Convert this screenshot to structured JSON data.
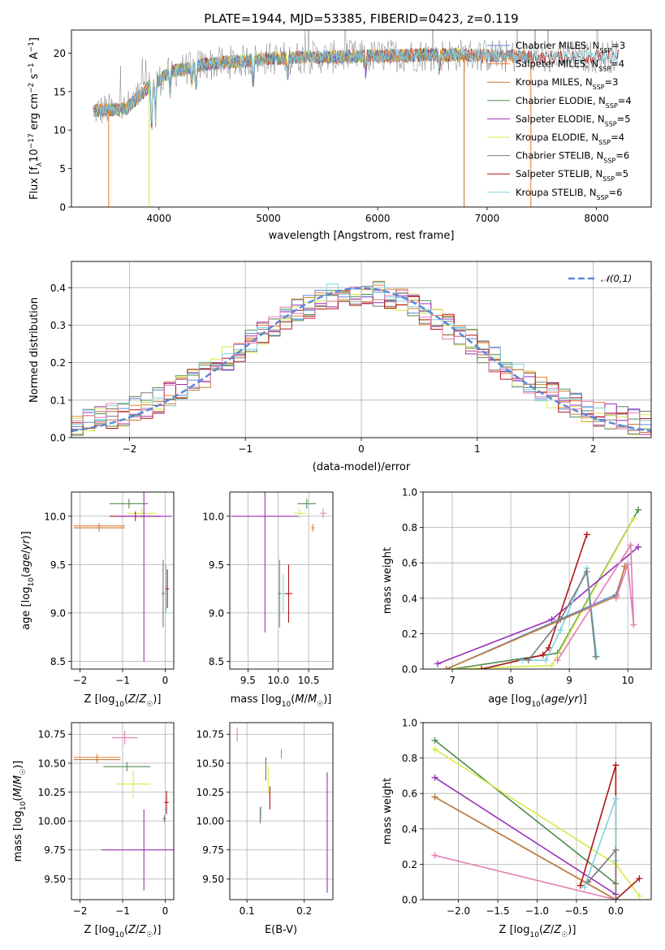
{
  "colors": {
    "chabrier_miles": "#5b87d6",
    "salpeter_miles": "#ee7f34",
    "kroupa_miles": "#c77c36",
    "chabrier_elodie": "#4f8c4f",
    "salpeter_elodie": "#9b30b8",
    "kroupa_elodie": "#d7ea4a",
    "chabrier_stelib": "#7a7a7a",
    "salpeter_stelib": "#b01414",
    "kroupa_stelib": "#7fd4dd",
    "normal": "#5b87d6",
    "pink": "#e27cb4"
  },
  "chart_data": [
    {
      "type": "line",
      "title": "PLATE=1944, MJD=53385, FIBERID=0423, z=0.119",
      "xlabel": "wavelength [Angstrom, rest frame]",
      "ylabel": "Flux [f_λ10^-17 erg cm^-2 s^-1 A^-1]",
      "xlim": [
        3200,
        8500
      ],
      "ylim": [
        0,
        23
      ],
      "xticks": [
        "4000",
        "5000",
        "6000",
        "7000",
        "8000"
      ],
      "yticks": [
        "0",
        "5",
        "10",
        "15",
        "20"
      ],
      "legend_position": "top-right",
      "series": [
        {
          "name": "Chabrier MILES, N_SSP=3",
          "key": "chabrier_miles"
        },
        {
          "name": "Salpeter MILES, N_SSP=4",
          "key": "salpeter_miles"
        },
        {
          "name": "Kroupa MILES, N_SSP=3",
          "key": "kroupa_miles"
        },
        {
          "name": "Chabrier ELODIE, N_SSP=4",
          "key": "chabrier_elodie"
        },
        {
          "name": "Salpeter ELODIE, N_SSP=5",
          "key": "salpeter_elodie"
        },
        {
          "name": "Kroupa ELODIE, N_SSP=4",
          "key": "kroupa_elodie"
        },
        {
          "name": "Chabrier STELIB, N_SSP=6",
          "key": "chabrier_stelib"
        },
        {
          "name": "Salpeter STELIB, N_SSP=5",
          "key": "salpeter_stelib"
        },
        {
          "name": "Kroupa STELIB, N_SSP=6",
          "key": "kroupa_stelib"
        }
      ],
      "continuum": {
        "x": [
          3400,
          3700,
          3900,
          4100,
          4400,
          5000,
          5500,
          6000,
          6500,
          7000,
          7500,
          8200
        ],
        "y": [
          12.5,
          12.8,
          15.5,
          17.5,
          18.5,
          19.3,
          19.5,
          19.6,
          19.8,
          19.7,
          19.4,
          19.6
        ]
      },
      "cutoffs": [
        {
          "x": 3540,
          "key": "salpeter_miles"
        },
        {
          "x": 3910,
          "key": "kroupa_elodie"
        },
        {
          "x": 6790,
          "key": "kroupa_miles"
        },
        {
          "x": 7400,
          "key": "salpeter_miles"
        }
      ]
    },
    {
      "type": "histogram",
      "xlabel": "(data-model)/error",
      "ylabel": "Normed distribution",
      "xlim": [
        -2.5,
        2.5
      ],
      "ylim": [
        0,
        0.47
      ],
      "xticks": [
        "-2",
        "-1",
        "0",
        "1",
        "2"
      ],
      "yticks": [
        "0.0",
        "0.1",
        "0.2",
        "0.3",
        "0.4"
      ],
      "legend": "𝒩(0,1)",
      "legend_position": "top-right"
    },
    {
      "type": "scatter",
      "xlabel": "Z [log10(Z/Z☉)]",
      "ylabel": "age  [log10(age/yr)]",
      "xlim": [
        -2.2,
        0.2
      ],
      "ylim": [
        8.42,
        10.25
      ],
      "xticks": [
        "-2",
        "-1",
        "0"
      ],
      "yticks": [
        "8.5",
        "9.0",
        "9.5",
        "10.0"
      ],
      "points": [
        {
          "x": -1.55,
          "y": 9.88,
          "xerr": 0.6,
          "yerr": 0.04,
          "key": "kroupa_miles"
        },
        {
          "x": -1.55,
          "y": 9.9,
          "xerr": 0.6,
          "yerr": 0.03,
          "key": "salpeter_miles"
        },
        {
          "x": -0.85,
          "y": 10.13,
          "xerr": 0.45,
          "yerr": 0.05,
          "key": "chabrier_elodie"
        },
        {
          "x": -0.55,
          "y": 10.03,
          "xerr": 0.35,
          "yerr": 0.05,
          "key": "kroupa_elodie"
        },
        {
          "x": -0.7,
          "y": 10.0,
          "xerr": 0.6,
          "yerr": 0.05,
          "key": "salpeter_stelib"
        },
        {
          "x": -0.5,
          "y": 10.0,
          "xerr": 0.65,
          "yerr": 1.5,
          "key": "salpeter_elodie"
        },
        {
          "x": -0.05,
          "y": 9.2,
          "xerr": 0.04,
          "yerr": 0.35,
          "key": "chabrier_stelib"
        },
        {
          "x": 0.02,
          "y": 9.25,
          "xerr": 0.03,
          "yerr": 0.25,
          "key": "kroupa_stelib"
        },
        {
          "x": 0.05,
          "y": 9.25,
          "xerr": 0.04,
          "yerr": 0.2,
          "key": "salpeter_stelib"
        }
      ]
    },
    {
      "type": "scatter",
      "xlabel": "mass [log10(M/M☉)]",
      "ylabel": "",
      "xlim": [
        9.2,
        10.9
      ],
      "ylim": [
        8.42,
        10.25
      ],
      "xticks": [
        "9.5",
        "10.0",
        "10.5"
      ],
      "yticks": [
        "8.5",
        "9.0",
        "9.5",
        "10.0"
      ],
      "points": [
        {
          "x": 9.78,
          "y": 10.0,
          "xerr": 0.55,
          "yerr": 1.2,
          "key": "salpeter_elodie"
        },
        {
          "x": 10.47,
          "y": 10.13,
          "xerr": 0.15,
          "yerr": 0.05,
          "key": "chabrier_elodie"
        },
        {
          "x": 10.35,
          "y": 10.03,
          "xerr": 0.1,
          "yerr": 0.05,
          "key": "kroupa_elodie"
        },
        {
          "x": 10.57,
          "y": 9.88,
          "xerr": 0.03,
          "yerr": 0.04,
          "key": "salpeter_miles"
        },
        {
          "x": 10.74,
          "y": 10.03,
          "xerr": 0.05,
          "yerr": 0.05,
          "key": "pink"
        },
        {
          "x": 10.02,
          "y": 9.2,
          "xerr": 0.03,
          "yerr": 0.35,
          "key": "chabrier_stelib"
        },
        {
          "x": 10.08,
          "y": 9.2,
          "xerr": 0.04,
          "yerr": 0.2,
          "key": "kroupa_stelib"
        },
        {
          "x": 10.17,
          "y": 9.2,
          "xerr": 0.06,
          "yerr": 0.3,
          "key": "salpeter_stelib"
        }
      ]
    },
    {
      "type": "line",
      "xlabel": "age  [log10(age/yr)]",
      "ylabel": "mass weight",
      "xlim": [
        6.5,
        10.4
      ],
      "ylim": [
        0,
        1
      ],
      "xticks": [
        "7",
        "8",
        "9",
        "10"
      ],
      "yticks": [
        "0.0",
        "0.2",
        "0.4",
        "0.6",
        "0.8",
        "1.0"
      ],
      "series": [
        {
          "key": "chabrier_elodie",
          "x": [
            7.0,
            8.8,
            10.18
          ],
          "y": [
            0.0,
            0.09,
            0.9
          ]
        },
        {
          "key": "kroupa_elodie",
          "x": [
            7.0,
            8.7,
            10.1
          ],
          "y": [
            0.0,
            0.02,
            0.85
          ]
        },
        {
          "key": "salpeter_elodie",
          "x": [
            6.75,
            8.7,
            10.18
          ],
          "y": [
            0.03,
            0.28,
            0.69
          ]
        },
        {
          "key": "salpeter_stelib",
          "x": [
            7.5,
            8.55,
            8.65,
            9.3
          ],
          "y": [
            0.0,
            0.08,
            0.12,
            0.76
          ]
        },
        {
          "key": "kroupa_stelib",
          "x": [
            8.2,
            8.6,
            8.85,
            9.3,
            9.47
          ],
          "y": [
            0.05,
            0.05,
            0.22,
            0.57,
            0.07
          ]
        },
        {
          "key": "chabrier_stelib",
          "x": [
            8.3,
            8.85,
            9.3,
            9.45
          ],
          "y": [
            0.05,
            0.28,
            0.55,
            0.07
          ]
        },
        {
          "key": "chabrier_miles",
          "x": [
            6.9,
            9.8,
            9.95
          ],
          "y": [
            0.0,
            0.42,
            0.58
          ]
        },
        {
          "key": "kroupa_miles",
          "x": [
            6.9,
            9.8,
            9.95
          ],
          "y": [
            0.0,
            0.41,
            0.58
          ]
        },
        {
          "key": "pink",
          "x": [
            8.8,
            10.05,
            10.1,
            10.0,
            9.8
          ],
          "y": [
            0.05,
            0.7,
            0.25,
            0.59,
            0.4
          ]
        }
      ]
    },
    {
      "type": "scatter",
      "xlabel": "Z [log10(Z/Z☉)]",
      "ylabel": "mass [log10(M/M☉)]",
      "xlim": [
        -2.2,
        0.2
      ],
      "ylim": [
        9.32,
        10.85
      ],
      "xticks": [
        "-2",
        "-1",
        "0"
      ],
      "yticks": [
        "9.50",
        "9.75",
        "10.00",
        "10.25",
        "10.50",
        "10.75"
      ],
      "points": [
        {
          "x": -1.6,
          "y": 10.55,
          "xerr": 0.55,
          "yerr": 0.03,
          "key": "salpeter_miles"
        },
        {
          "x": -1.6,
          "y": 10.53,
          "xerr": 0.55,
          "yerr": 0.03,
          "key": "kroupa_miles"
        },
        {
          "x": -0.95,
          "y": 10.72,
          "xerr": 0.3,
          "yerr": 0.06,
          "key": "pink"
        },
        {
          "x": -0.9,
          "y": 10.47,
          "xerr": 0.55,
          "yerr": 0.04,
          "key": "chabrier_elodie"
        },
        {
          "x": -0.75,
          "y": 10.32,
          "xerr": 0.4,
          "yerr": 0.12,
          "key": "kroupa_elodie"
        },
        {
          "x": -0.5,
          "y": 9.75,
          "xerr": 1.0,
          "yerr": 0.35,
          "key": "salpeter_elodie"
        },
        {
          "x": -0.02,
          "y": 10.02,
          "xerr": 0.04,
          "yerr": 0.03,
          "key": "chabrier_stelib"
        },
        {
          "x": 0.0,
          "y": 10.1,
          "xerr": 0.03,
          "yerr": 0.05,
          "key": "kroupa_stelib"
        },
        {
          "x": 0.03,
          "y": 10.16,
          "xerr": 0.05,
          "yerr": 0.1,
          "key": "salpeter_stelib"
        }
      ]
    },
    {
      "type": "scatter",
      "xlabel": "E(B-V)",
      "ylabel": "",
      "xlim": [
        0.07,
        0.25
      ],
      "ylim": [
        9.32,
        10.85
      ],
      "xticks": [
        "0.1",
        "0.2"
      ],
      "yticks": [
        "9.50",
        "9.75",
        "10.00",
        "10.25",
        "10.50",
        "10.75"
      ],
      "points": [
        {
          "x": 0.083,
          "y": 10.75,
          "xerr": 0.0,
          "yerr": 0.06,
          "key": "pink"
        },
        {
          "x": 0.123,
          "y": 10.05,
          "xerr": 0.0,
          "yerr": 0.07,
          "key": "chabrier_stelib"
        },
        {
          "x": 0.125,
          "y": 10.07,
          "xerr": 0.0,
          "yerr": 0.06,
          "key": "kroupa_stelib"
        },
        {
          "x": 0.133,
          "y": 10.45,
          "xerr": 0.0,
          "yerr": 0.1,
          "key": "chabrier_elodie"
        },
        {
          "x": 0.137,
          "y": 10.35,
          "xerr": 0.0,
          "yerr": 0.12,
          "key": "kroupa_elodie"
        },
        {
          "x": 0.14,
          "y": 10.2,
          "xerr": 0.0,
          "yerr": 0.1,
          "key": "salpeter_stelib"
        },
        {
          "x": 0.16,
          "y": 10.58,
          "xerr": 0.0,
          "yerr": 0.04,
          "key": "salpeter_miles"
        },
        {
          "x": 0.24,
          "y": 9.9,
          "xerr": 0.0,
          "yerr": 0.52,
          "key": "salpeter_elodie"
        }
      ]
    },
    {
      "type": "line",
      "xlabel": "Z [log10(Z/Z☉)]",
      "ylabel": "mass weight",
      "xlim": [
        -2.45,
        0.45
      ],
      "ylim": [
        0,
        1
      ],
      "xticks": [
        "-2.0",
        "-1.5",
        "-1.0",
        "-0.5",
        "0.0"
      ],
      "yticks": [
        "0.0",
        "0.2",
        "0.4",
        "0.6",
        "0.8",
        "1.0"
      ],
      "series": [
        {
          "key": "chabrier_elodie",
          "x": [
            -2.3,
            0.0
          ],
          "y": [
            0.9,
            0.09
          ]
        },
        {
          "key": "kroupa_elodie",
          "x": [
            -2.3,
            0.0,
            0.3
          ],
          "y": [
            0.85,
            0.2,
            0.02
          ]
        },
        {
          "key": "salpeter_elodie",
          "x": [
            -2.3,
            0.0
          ],
          "y": [
            0.69,
            0.03
          ]
        },
        {
          "key": "chabrier_miles",
          "x": [
            -2.3,
            0.0
          ],
          "y": [
            0.58,
            0.0
          ]
        },
        {
          "key": "kroupa_miles",
          "x": [
            -2.3,
            0.0
          ],
          "y": [
            0.58,
            0.0
          ]
        },
        {
          "key": "pink",
          "x": [
            -2.3,
            0.0
          ],
          "y": [
            0.25,
            0.0
          ]
        },
        {
          "key": "salpeter_stelib",
          "x": [
            -0.45,
            0.0,
            0.0,
            0.3
          ],
          "y": [
            0.08,
            0.76,
            0.0,
            0.12
          ]
        },
        {
          "key": "kroupa_stelib",
          "x": [
            -0.4,
            0.0,
            0.0
          ],
          "y": [
            0.07,
            0.57,
            0.22
          ]
        },
        {
          "key": "chabrier_stelib",
          "x": [
            -0.35,
            0.0,
            0.0
          ],
          "y": [
            0.1,
            0.28,
            0.0
          ]
        }
      ]
    }
  ]
}
